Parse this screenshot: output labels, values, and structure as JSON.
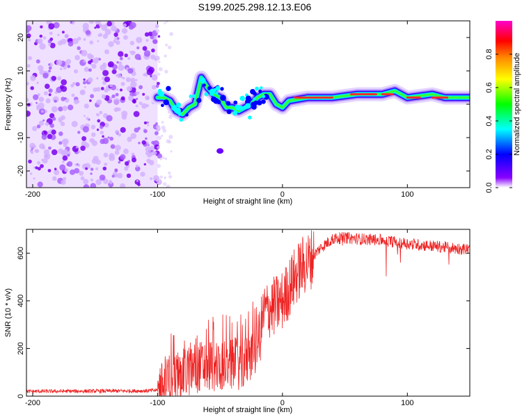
{
  "title": "S199.2025.298.12.13.E06",
  "chart_data": [
    {
      "type": "heatmap",
      "xlabel": "Height of straight line (km)",
      "ylabel": "Frequency (Hz)",
      "xlim": [
        -205,
        150
      ],
      "ylim": [
        -25,
        25
      ],
      "xticks": [
        -200,
        -100,
        0,
        100
      ],
      "yticks": [
        -20,
        -10,
        0,
        10,
        20
      ],
      "noise_region_x": [
        -205,
        -100
      ],
      "ridge_points": [
        [
          -100,
          2
        ],
        [
          -95,
          2
        ],
        [
          -90,
          1
        ],
        [
          -85,
          -2
        ],
        [
          -80,
          -3
        ],
        [
          -75,
          -1
        ],
        [
          -70,
          0
        ],
        [
          -65,
          8
        ],
        [
          -60,
          5
        ],
        [
          -55,
          3
        ],
        [
          -50,
          2
        ],
        [
          -45,
          -1
        ],
        [
          -40,
          -1
        ],
        [
          -35,
          -2
        ],
        [
          -30,
          -1
        ],
        [
          -25,
          0
        ],
        [
          -20,
          2
        ],
        [
          -15,
          3
        ],
        [
          -10,
          3
        ],
        [
          -5,
          0
        ],
        [
          0,
          -1
        ],
        [
          5,
          1
        ],
        [
          20,
          2
        ],
        [
          40,
          2
        ],
        [
          60,
          3
        ],
        [
          80,
          3
        ],
        [
          90,
          4
        ],
        [
          95,
          3
        ],
        [
          100,
          2
        ],
        [
          120,
          3
        ],
        [
          130,
          2
        ],
        [
          150,
          2
        ]
      ],
      "colorbar": {
        "label": "Normalized spectral amplitude",
        "range": [
          0,
          1
        ],
        "ticks": [
          "0.0",
          "0.2",
          "0.4",
          "0.6",
          "0.8"
        ],
        "colors": [
          "#ffffff",
          "#8800ff",
          "#0000ff",
          "#00ffff",
          "#00ff00",
          "#ffff00",
          "#ff8800",
          "#ff0000",
          "#ff00cc"
        ]
      }
    },
    {
      "type": "line",
      "xlabel": "Height of straight line (km)",
      "ylabel": "SNR (10 * v/v)",
      "xlim": [
        -205,
        150
      ],
      "ylim": [
        0,
        700
      ],
      "xticks": [
        -200,
        -100,
        0,
        100
      ],
      "yticks": [
        0,
        200,
        400,
        600
      ],
      "color": "#ee2222",
      "trend": [
        [
          -205,
          20
        ],
        [
          -110,
          22
        ],
        [
          -100,
          25
        ],
        [
          -90,
          60
        ],
        [
          -80,
          90
        ],
        [
          -70,
          120
        ],
        [
          -60,
          130
        ],
        [
          -50,
          130
        ],
        [
          -40,
          130
        ],
        [
          -30,
          140
        ],
        [
          -20,
          200
        ],
        [
          -15,
          350
        ],
        [
          -10,
          370
        ],
        [
          -5,
          380
        ],
        [
          0,
          400
        ],
        [
          5,
          450
        ],
        [
          10,
          500
        ],
        [
          15,
          540
        ],
        [
          20,
          560
        ],
        [
          25,
          590
        ],
        [
          30,
          620
        ],
        [
          40,
          660
        ],
        [
          50,
          665
        ],
        [
          60,
          660
        ],
        [
          80,
          655
        ],
        [
          100,
          640
        ],
        [
          120,
          630
        ],
        [
          150,
          615
        ]
      ]
    }
  ]
}
